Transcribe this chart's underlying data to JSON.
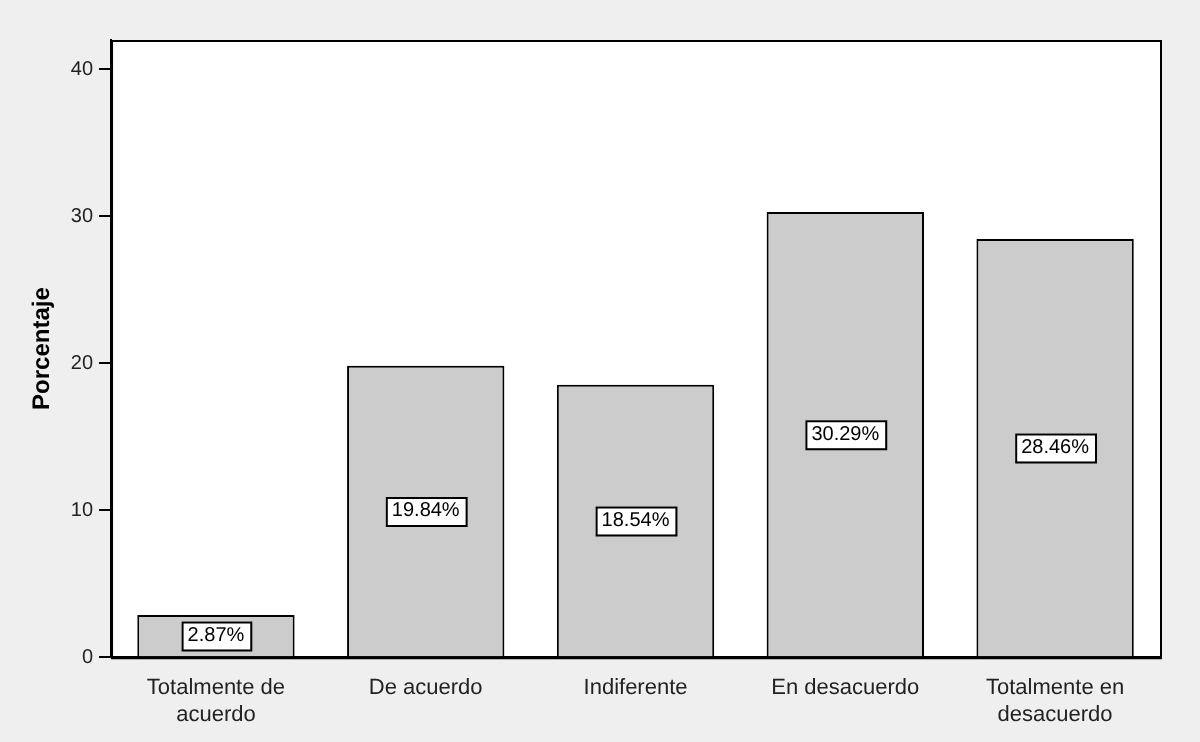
{
  "chart_data": {
    "type": "bar",
    "ylabel": "Porcentaje",
    "categories": [
      "Totalmente de acuerdo",
      "De acuerdo",
      "Indiferente",
      "En desacuerdo",
      "Totalmente en desacuerdo"
    ],
    "values": [
      2.87,
      19.84,
      18.54,
      30.29,
      28.46
    ],
    "value_labels": [
      "2.87%",
      "19.84%",
      "18.54%",
      "30.29%",
      "28.46%"
    ],
    "color": "#cccccc",
    "ylim": [
      0,
      42
    ],
    "yticks": [
      0,
      10,
      20,
      30,
      40
    ],
    "grid": false,
    "legend": false
  }
}
